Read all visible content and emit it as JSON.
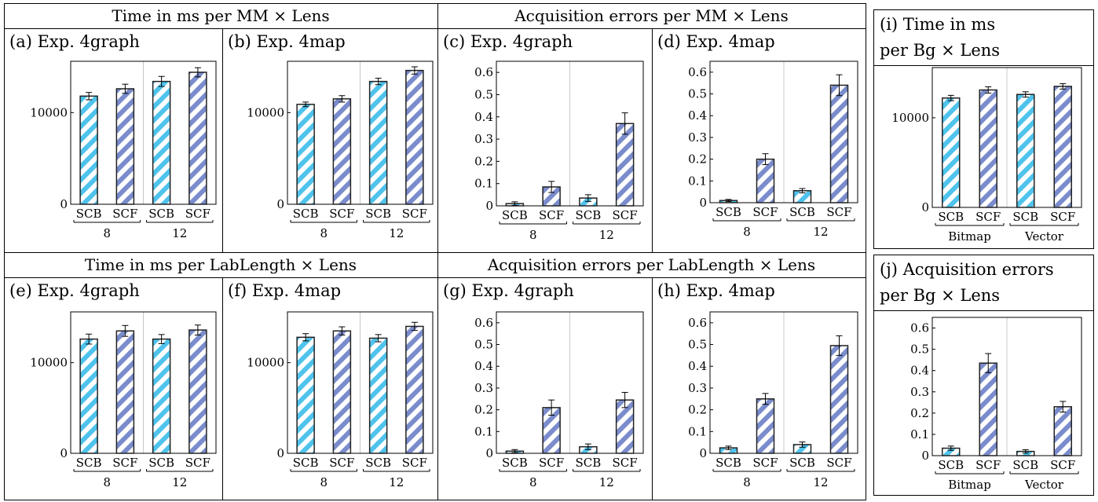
{
  "section_titles": {
    "top_time": "Time in ms per MM × Lens",
    "top_acq": "Acquisition errors per MM × Lens",
    "bottom_time": "Time in ms per LabLength × Lens",
    "bottom_acq": "Acquisition errors per LabLength × Lens"
  },
  "panel_labels": {
    "a": "(a) Exp. 4graph",
    "b": "(b) Exp. 4map",
    "c": "(c) Exp. 4graph",
    "d": "(d) Exp. 4map",
    "e": "(e) Exp. 4graph",
    "f": "(f) Exp. 4map",
    "g": "(g) Exp. 4graph",
    "h": "(h) Exp. 4map",
    "i_line1": "(i) Time in ms",
    "i_line2": "per Bg × Lens",
    "j_line1": "(j) Acquisition errors",
    "j_line2": "per Bg × Lens"
  },
  "colors": {
    "scb": "#4fc3ec",
    "scf": "#7a8ccc",
    "separator": "#c8c8c8"
  },
  "chart_data": [
    {
      "id": "a",
      "type": "bar",
      "ylim": [
        0,
        15600
      ],
      "yticks": [
        0,
        10000
      ],
      "ytick_labels": [
        "0",
        "10000"
      ],
      "categories": [
        "SCB",
        "SCF",
        "SCB",
        "SCF"
      ],
      "groups": [
        "8",
        "12"
      ],
      "values": [
        11800,
        12600,
        13400,
        14400
      ],
      "errors": [
        400,
        500,
        550,
        500
      ]
    },
    {
      "id": "b",
      "type": "bar",
      "ylim": [
        0,
        15600
      ],
      "yticks": [
        0,
        10000
      ],
      "ytick_labels": [
        "0",
        "10000"
      ],
      "categories": [
        "SCB",
        "SCF",
        "SCB",
        "SCF"
      ],
      "groups": [
        "8",
        "12"
      ],
      "values": [
        10900,
        11500,
        13400,
        14600
      ],
      "errors": [
        250,
        350,
        350,
        400
      ]
    },
    {
      "id": "c",
      "type": "bar",
      "ylim": [
        0,
        0.65
      ],
      "yticks": [
        0,
        0.1,
        0.2,
        0.3,
        0.4,
        0.5,
        0.6
      ],
      "ytick_labels": [
        "0",
        "0.1",
        "0.2",
        "0.3",
        "0.4",
        "0.5",
        "0.6"
      ],
      "categories": [
        "SCB",
        "SCF",
        "SCB",
        "SCF"
      ],
      "groups": [
        "8",
        "12"
      ],
      "values": [
        0.01,
        0.085,
        0.035,
        0.37
      ],
      "errors": [
        0.008,
        0.025,
        0.015,
        0.048
      ]
    },
    {
      "id": "d",
      "type": "bar",
      "ylim": [
        0,
        0.65
      ],
      "yticks": [
        0,
        0.1,
        0.2,
        0.3,
        0.4,
        0.5,
        0.6
      ],
      "ytick_labels": [
        "0",
        "0.1",
        "0.2",
        "0.3",
        "0.4",
        "0.5",
        "0.6"
      ],
      "categories": [
        "SCB",
        "SCF",
        "SCB",
        "SCF"
      ],
      "groups": [
        "8",
        "12"
      ],
      "values": [
        0.01,
        0.2,
        0.055,
        0.54
      ],
      "errors": [
        0.005,
        0.025,
        0.01,
        0.048
      ]
    },
    {
      "id": "e",
      "type": "bar",
      "ylim": [
        0,
        15600
      ],
      "yticks": [
        0,
        10000
      ],
      "ytick_labels": [
        "0",
        "10000"
      ],
      "categories": [
        "SCB",
        "SCF",
        "SCB",
        "SCF"
      ],
      "groups": [
        "8",
        "12"
      ],
      "values": [
        12600,
        13500,
        12600,
        13600
      ],
      "errors": [
        550,
        600,
        500,
        550
      ]
    },
    {
      "id": "f",
      "type": "bar",
      "ylim": [
        0,
        15600
      ],
      "yticks": [
        0,
        10000
      ],
      "ytick_labels": [
        "0",
        "10000"
      ],
      "categories": [
        "SCB",
        "SCF",
        "SCB",
        "SCF"
      ],
      "groups": [
        "8",
        "12"
      ],
      "values": [
        12800,
        13500,
        12700,
        14000
      ],
      "errors": [
        400,
        450,
        400,
        450
      ]
    },
    {
      "id": "g",
      "type": "bar",
      "ylim": [
        0,
        0.65
      ],
      "yticks": [
        0,
        0.1,
        0.2,
        0.3,
        0.4,
        0.5,
        0.6
      ],
      "ytick_labels": [
        "0",
        "0.1",
        "0.2",
        "0.3",
        "0.4",
        "0.5",
        "0.6"
      ],
      "categories": [
        "SCB",
        "SCF",
        "SCB",
        "SCF"
      ],
      "groups": [
        "8",
        "12"
      ],
      "values": [
        0.01,
        0.21,
        0.03,
        0.245
      ],
      "errors": [
        0.007,
        0.035,
        0.013,
        0.035
      ]
    },
    {
      "id": "h",
      "type": "bar",
      "ylim": [
        0,
        0.65
      ],
      "yticks": [
        0,
        0.1,
        0.2,
        0.3,
        0.4,
        0.5,
        0.6
      ],
      "ytick_labels": [
        "0",
        "0.1",
        "0.2",
        "0.3",
        "0.4",
        "0.5",
        "0.6"
      ],
      "categories": [
        "SCB",
        "SCF",
        "SCB",
        "SCF"
      ],
      "groups": [
        "8",
        "12"
      ],
      "values": [
        0.025,
        0.25,
        0.04,
        0.495
      ],
      "errors": [
        0.008,
        0.025,
        0.012,
        0.045
      ]
    },
    {
      "id": "i",
      "type": "bar",
      "ylim": [
        0,
        15600
      ],
      "yticks": [
        0,
        10000
      ],
      "ytick_labels": [
        "0",
        "10000"
      ],
      "categories": [
        "SCB",
        "SCF",
        "SCB",
        "SCF"
      ],
      "groups": [
        "Bitmap",
        "Vector"
      ],
      "values": [
        12200,
        13100,
        12600,
        13500
      ],
      "errors": [
        300,
        350,
        300,
        300
      ]
    },
    {
      "id": "j",
      "type": "bar",
      "ylim": [
        0,
        0.65
      ],
      "yticks": [
        0,
        0.1,
        0.2,
        0.3,
        0.4,
        0.5,
        0.6
      ],
      "ytick_labels": [
        "0",
        "0.1",
        "0.2",
        "0.3",
        "0.4",
        "0.5",
        "0.6"
      ],
      "categories": [
        "SCB",
        "SCF",
        "SCB",
        "SCF"
      ],
      "groups": [
        "Bitmap",
        "Vector"
      ],
      "values": [
        0.035,
        0.435,
        0.02,
        0.23
      ],
      "errors": [
        0.01,
        0.045,
        0.008,
        0.025
      ]
    }
  ]
}
